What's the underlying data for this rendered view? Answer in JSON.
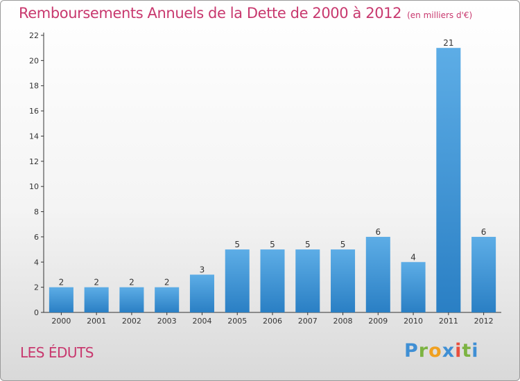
{
  "title": "Remboursements Annuels de la Dette de 2000 à 2012",
  "unit_note": "(en milliers d'€)",
  "commune": "LES ÉDUTS",
  "logo_text": "Proxiti",
  "colors": {
    "bar_top": "#5dade6",
    "bar_bottom": "#2a7fc4",
    "title": "#c8386e",
    "axis": "#333333"
  },
  "chart_data": {
    "type": "bar",
    "categories": [
      "2000",
      "2001",
      "2002",
      "2003",
      "2004",
      "2005",
      "2006",
      "2007",
      "2008",
      "2009",
      "2010",
      "2011",
      "2012"
    ],
    "values": [
      2,
      2,
      2,
      2,
      3,
      5,
      5,
      5,
      5,
      6,
      4,
      21,
      6
    ],
    "ylim": [
      0,
      22
    ],
    "yticks": [
      0,
      2,
      4,
      6,
      8,
      10,
      12,
      14,
      16,
      18,
      20,
      22
    ],
    "grid": false,
    "xlabel": "",
    "ylabel": ""
  }
}
